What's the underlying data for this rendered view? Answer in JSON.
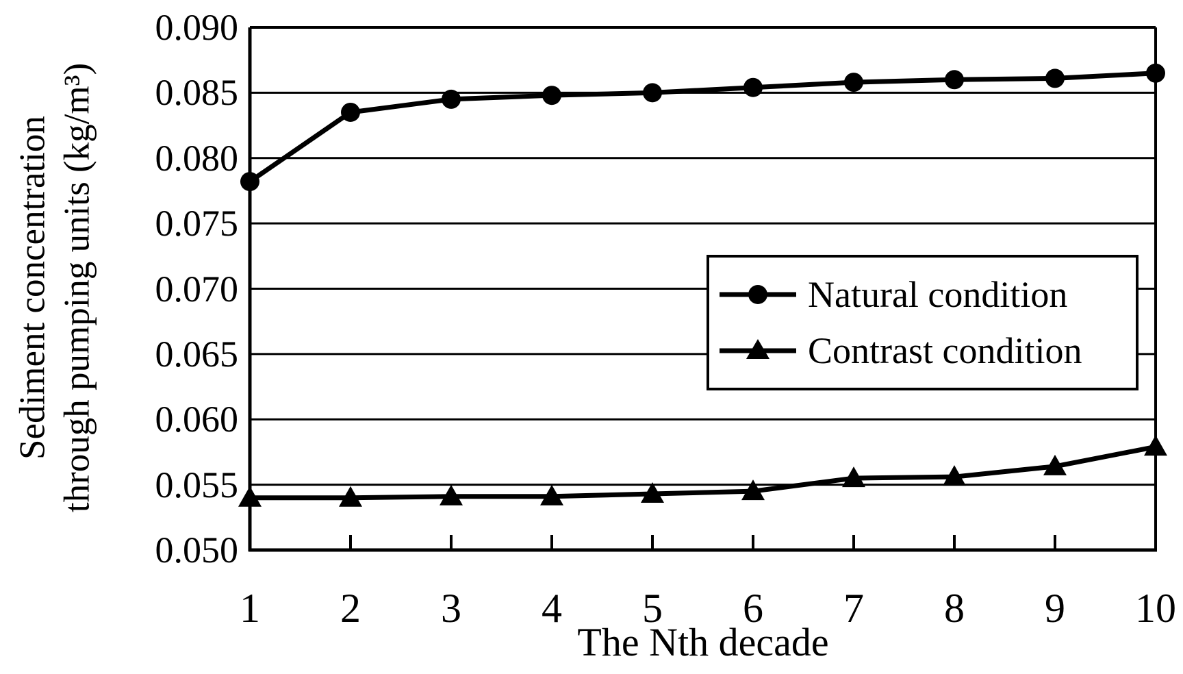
{
  "figure": {
    "background_color": "#ffffff",
    "ink_color": "#000000"
  },
  "chart_data": {
    "type": "line",
    "title": "",
    "xlabel": "The Nth decade",
    "ylabel_line1": "Sediment concentration",
    "ylabel_line2": "through pumping units (kg/m³)",
    "x": [
      1,
      2,
      3,
      4,
      5,
      6,
      7,
      8,
      9,
      10
    ],
    "xtick_labels": [
      "1",
      "2",
      "3",
      "4",
      "5",
      "6",
      "7",
      "8",
      "9",
      "10"
    ],
    "ytick_labels": [
      "0.050",
      "0.055",
      "0.060",
      "0.065",
      "0.070",
      "0.075",
      "0.080",
      "0.085",
      "0.090"
    ],
    "ylim": [
      0.05,
      0.09
    ],
    "ytick_step": 0.005,
    "grid": "horizontal",
    "legend_position": "upper-right-inside",
    "series": [
      {
        "name": "Natural condition",
        "marker": "circle",
        "color": "#000000",
        "values": [
          0.0782,
          0.0835,
          0.0845,
          0.0848,
          0.085,
          0.0854,
          0.0858,
          0.086,
          0.0861,
          0.0865
        ]
      },
      {
        "name": "Contrast condition",
        "marker": "triangle",
        "color": "#000000",
        "values": [
          0.054,
          0.054,
          0.0541,
          0.0541,
          0.0543,
          0.0545,
          0.0555,
          0.0556,
          0.0564,
          0.0579
        ]
      }
    ]
  }
}
